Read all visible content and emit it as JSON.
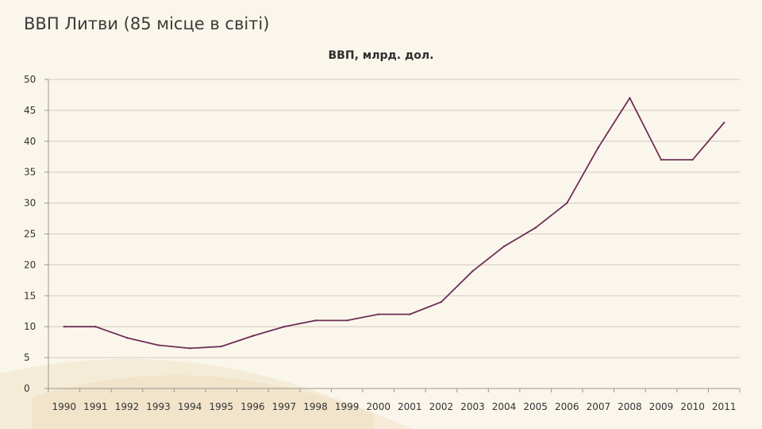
{
  "slide": {
    "title": "ВВП Литви (85 місце в світі)"
  },
  "chart_data": {
    "type": "line",
    "title": "ВВП, млрд. дол.",
    "xlabel": "",
    "ylabel": "",
    "categories": [
      "1990",
      "1991",
      "1992",
      "1993",
      "1994",
      "1995",
      "1996",
      "1997",
      "1998",
      "1999",
      "2000",
      "2001",
      "2002",
      "2003",
      "2004",
      "2005",
      "2006",
      "2007",
      "2008",
      "2009",
      "2010",
      "2011"
    ],
    "series": [
      {
        "values": [
          10,
          10,
          8.2,
          7,
          6.5,
          6.8,
          8.5,
          10,
          11,
          11,
          12,
          12,
          14,
          19,
          23,
          26,
          30,
          39,
          47,
          37,
          37,
          43
        ]
      }
    ],
    "ylim": [
      0,
      50
    ],
    "yticks": [
      0,
      5,
      10,
      15,
      20,
      25,
      30,
      35,
      40,
      45,
      50
    ],
    "grid": true,
    "legend": "none",
    "colors": {
      "line": "#6e2f57",
      "grid": "#cfcac0",
      "axis": "#9a958c"
    }
  }
}
